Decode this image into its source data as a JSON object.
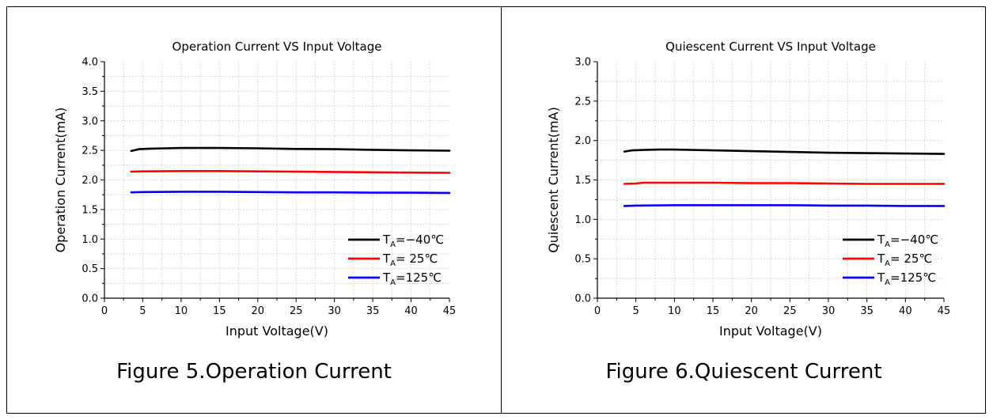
{
  "figures": [
    {
      "caption": "Figure 5.Operation Current",
      "chart_data": {
        "type": "line",
        "title": "Operation Current VS Input Voltage",
        "xlabel": "Input Voltage(V)",
        "ylabel": "Operation Current(mA)",
        "xlim": [
          0,
          45
        ],
        "ylim": [
          0,
          4.0
        ],
        "xticks": [
          "0",
          "5",
          "10",
          "15",
          "20",
          "25",
          "30",
          "35",
          "40",
          "45"
        ],
        "yticks": [
          "0.0",
          "0.5",
          "1.0",
          "1.5",
          "2.0",
          "2.5",
          "3.0",
          "3.5",
          "4.0"
        ],
        "grid": true,
        "legend_position": "bottom-right",
        "series": [
          {
            "name": "T_A=-40℃",
            "sub": "A",
            "suffix": "=−40℃",
            "color": "#000000",
            "x": [
              3.5,
              4.5,
              6,
              8,
              10,
              15,
              20,
              25,
              30,
              35,
              40,
              45
            ],
            "y": [
              2.49,
              2.52,
              2.53,
              2.535,
              2.54,
              2.54,
              2.535,
              2.525,
              2.52,
              2.51,
              2.5,
              2.495
            ]
          },
          {
            "name": "T_A= 25℃",
            "sub": "A",
            "suffix": "= 25℃",
            "color": "#ff0000",
            "x": [
              3.5,
              5,
              10,
              15,
              20,
              25,
              30,
              35,
              40,
              45
            ],
            "y": [
              2.14,
              2.145,
              2.15,
              2.15,
              2.145,
              2.14,
              2.135,
              2.13,
              2.125,
              2.12
            ]
          },
          {
            "name": "T_A=125℃",
            "sub": "A",
            "suffix": "=125℃",
            "color": "#0000ff",
            "x": [
              3.5,
              5,
              10,
              15,
              20,
              25,
              30,
              35,
              40,
              45
            ],
            "y": [
              1.79,
              1.795,
              1.8,
              1.8,
              1.795,
              1.79,
              1.79,
              1.785,
              1.785,
              1.78
            ]
          }
        ]
      }
    },
    {
      "caption": "Figure 6.Quiescent Current",
      "chart_data": {
        "type": "line",
        "title": "Quiescent Current VS Input Voltage",
        "xlabel": "Input Voltage(V)",
        "ylabel": "Quiescent Current(mA)",
        "xlim": [
          0,
          45
        ],
        "ylim": [
          0,
          3.0
        ],
        "xticks": [
          "0",
          "5",
          "10",
          "15",
          "20",
          "25",
          "30",
          "35",
          "40",
          "45"
        ],
        "yticks": [
          "0.0",
          "0.5",
          "1.0",
          "1.5",
          "2.0",
          "2.5",
          "3.0"
        ],
        "grid": true,
        "legend_position": "bottom-right",
        "series": [
          {
            "name": "T_A=-40℃",
            "sub": "A",
            "suffix": "=−40℃",
            "color": "#000000",
            "x": [
              3.5,
              4.5,
              6,
              8,
              10,
              15,
              20,
              25,
              30,
              35,
              40,
              45
            ],
            "y": [
              1.86,
              1.875,
              1.88,
              1.885,
              1.885,
              1.875,
              1.865,
              1.855,
              1.845,
              1.84,
              1.835,
              1.83
            ]
          },
          {
            "name": "T_A= 25℃",
            "sub": "A",
            "suffix": "= 25℃",
            "color": "#ff0000",
            "x": [
              3.5,
              5,
              6,
              10,
              15,
              20,
              25,
              30,
              35,
              40,
              45
            ],
            "y": [
              1.45,
              1.455,
              1.465,
              1.465,
              1.465,
              1.46,
              1.46,
              1.455,
              1.45,
              1.45,
              1.45
            ]
          },
          {
            "name": "T_A=125℃",
            "sub": "A",
            "suffix": "=125℃",
            "color": "#0000ff",
            "x": [
              3.5,
              5,
              10,
              15,
              20,
              25,
              30,
              35,
              40,
              45
            ],
            "y": [
              1.17,
              1.175,
              1.18,
              1.18,
              1.18,
              1.18,
              1.175,
              1.175,
              1.17,
              1.17
            ]
          }
        ]
      }
    }
  ]
}
